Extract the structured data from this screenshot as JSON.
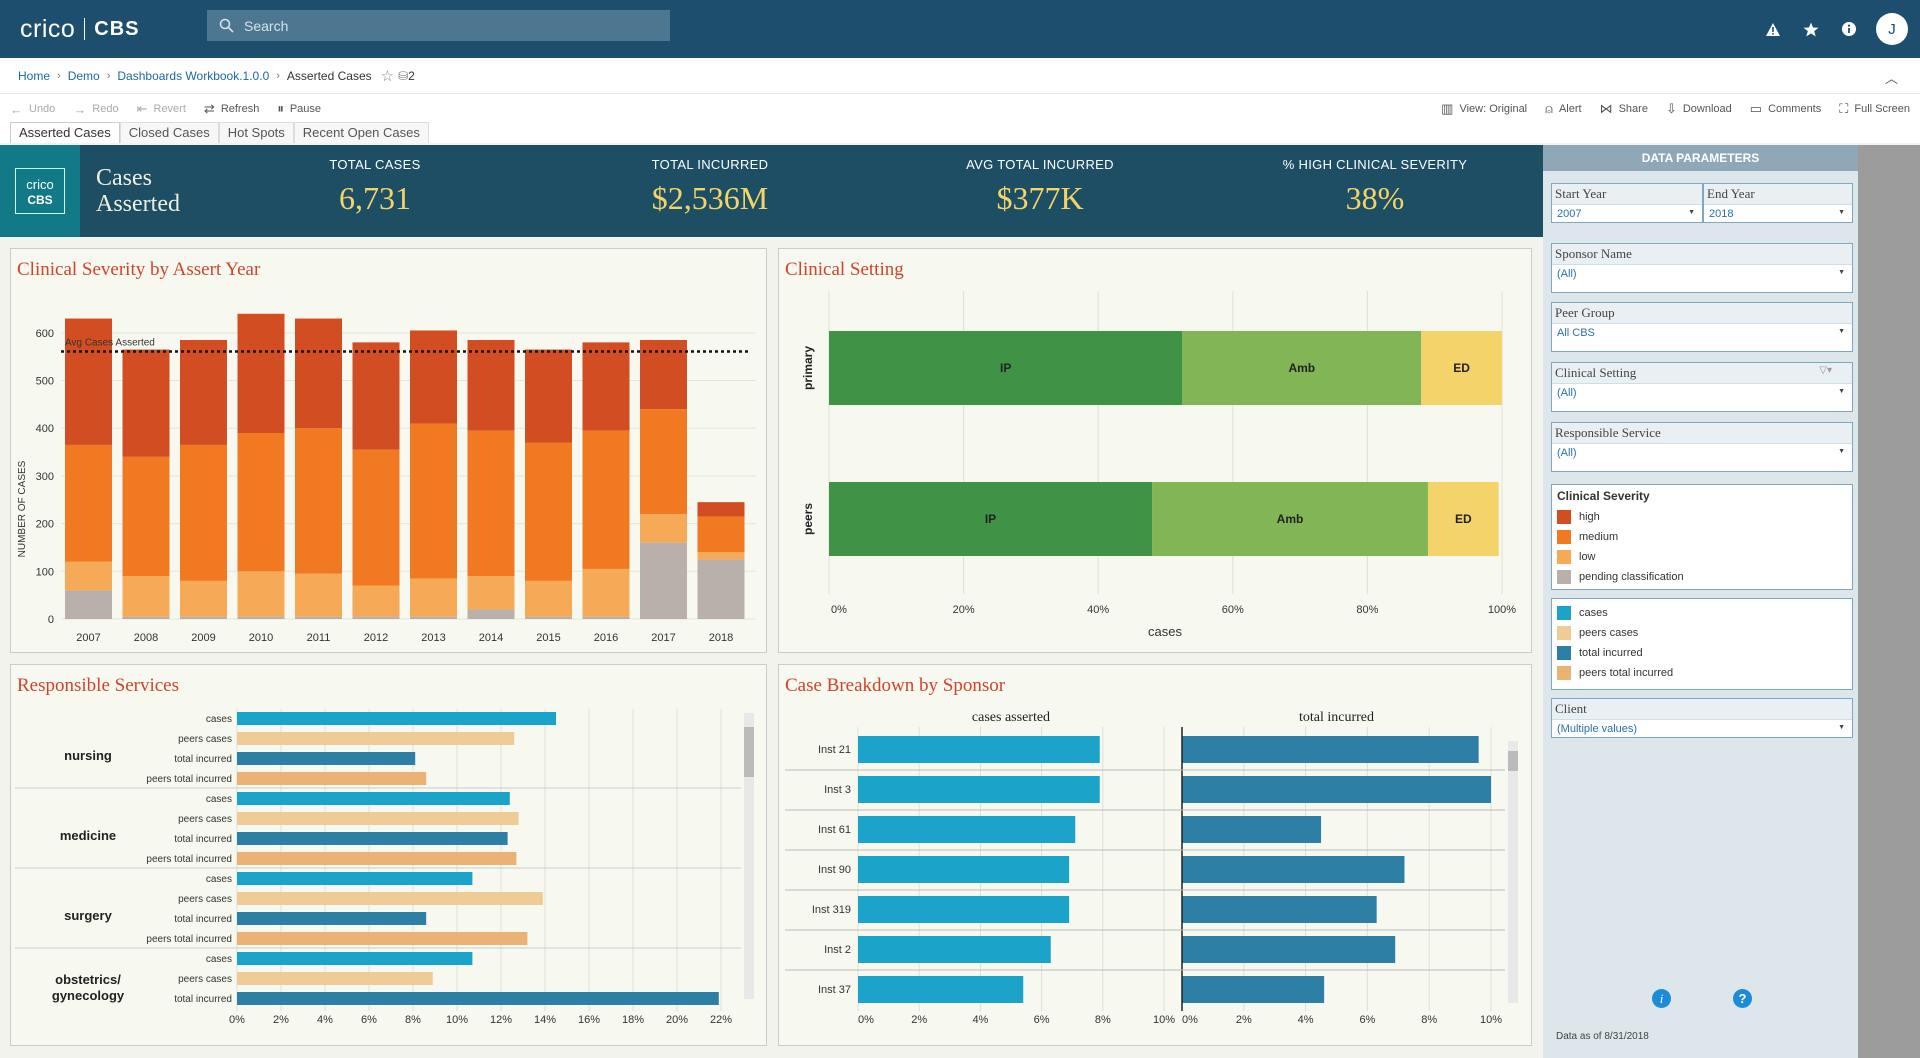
{
  "app": {
    "brand": "crico",
    "brand2": "CBS",
    "search_placeholder": "Search",
    "user_initial": "J"
  },
  "breadcrumb": [
    "Home",
    "Demo",
    "Dashboards Workbook.1.0.0",
    "Asserted Cases"
  ],
  "breadcrumb_count": "2",
  "toolbar": {
    "undo": "Undo",
    "redo": "Redo",
    "revert": "Revert",
    "refresh": "Refresh",
    "pause": "Pause",
    "view": "View: Original",
    "alert": "Alert",
    "share": "Share",
    "download": "Download",
    "comments": "Comments",
    "fullscreen": "Full Screen"
  },
  "tabs": [
    "Asserted Cases",
    "Closed Cases",
    "Hot Spots",
    "Recent Open Cases"
  ],
  "header": {
    "logo1": "crico",
    "logo2": "CBS",
    "title_line1": "Cases",
    "title_line2": "Asserted",
    "kpis": [
      {
        "label": "TOTAL CASES",
        "value": "6,731"
      },
      {
        "label": "TOTAL INCURRED",
        "value": "$2,536M"
      },
      {
        "label": "AVG TOTAL INCURRED",
        "value": "$377K"
      },
      {
        "label": "% HIGH CLINICAL SEVERITY",
        "value": "38%"
      }
    ]
  },
  "colors": {
    "high": "#d24e22",
    "medium": "#f07922",
    "low": "#f6aa58",
    "pending": "#b9b0ab",
    "cases": "#1ca3c9",
    "peers_cases": "#efcb95",
    "total_incurred": "#2e7fa6",
    "peers_total_incurred": "#eab374",
    "ip": "#3f9246",
    "amb": "#82b556",
    "ed": "#f4d36a"
  },
  "panels": {
    "severity": "Clinical Severity by Assert Year",
    "setting": "Clinical Setting",
    "services": "Responsible Services",
    "sponsor": "Case Breakdown by Sponsor"
  },
  "chart_data": [
    {
      "type": "bar",
      "stacked": true,
      "title": "Clinical Severity by Assert Year",
      "ylabel": "NUMBER OF CASES",
      "ylim": [
        0,
        650
      ],
      "yticks": [
        0,
        100,
        200,
        300,
        400,
        500,
        600
      ],
      "categories": [
        "2007",
        "2008",
        "2009",
        "2010",
        "2011",
        "2012",
        "2013",
        "2014",
        "2015",
        "2016",
        "2017",
        "2018"
      ],
      "series": [
        {
          "name": "pending classification",
          "values": [
            60,
            5,
            5,
            5,
            5,
            5,
            5,
            20,
            5,
            5,
            160,
            125
          ]
        },
        {
          "name": "low",
          "values": [
            60,
            85,
            75,
            95,
            90,
            65,
            80,
            70,
            75,
            100,
            60,
            15
          ]
        },
        {
          "name": "medium",
          "values": [
            245,
            250,
            285,
            290,
            305,
            285,
            325,
            305,
            290,
            290,
            220,
            75
          ]
        },
        {
          "name": "high",
          "values": [
            265,
            225,
            220,
            250,
            230,
            225,
            195,
            190,
            195,
            185,
            145,
            30
          ]
        }
      ],
      "reference_line": {
        "label": "Avg Cases Asserted",
        "value": 561
      }
    },
    {
      "type": "bar",
      "stacked": true,
      "orientation": "horizontal",
      "title": "Clinical Setting",
      "xlabel": "cases",
      "xlim": [
        0,
        100
      ],
      "xticks": [
        "0%",
        "20%",
        "40%",
        "60%",
        "80%",
        "100%"
      ],
      "categories": [
        "primary",
        "peers"
      ],
      "series": [
        {
          "name": "IP",
          "values": [
            52.5,
            48
          ]
        },
        {
          "name": "Amb",
          "values": [
            35.5,
            41
          ]
        },
        {
          "name": "ED",
          "values": [
            12,
            10.5
          ]
        }
      ]
    },
    {
      "type": "bar",
      "orientation": "horizontal",
      "title": "Responsible Services",
      "xlim": [
        0,
        22
      ],
      "xticks": [
        "0%",
        "2%",
        "4%",
        "6%",
        "8%",
        "10%",
        "12%",
        "14%",
        "16%",
        "18%",
        "20%",
        "22%"
      ],
      "groups": [
        {
          "name": "nursing",
          "bars": [
            {
              "label": "cases",
              "value": 14.5
            },
            {
              "label": "peers cases",
              "value": 12.6
            },
            {
              "label": "total incurred",
              "value": 8.1
            },
            {
              "label": "peers total incurred",
              "value": 8.6
            }
          ]
        },
        {
          "name": "medicine",
          "bars": [
            {
              "label": "cases",
              "value": 12.4
            },
            {
              "label": "peers cases",
              "value": 12.8
            },
            {
              "label": "total incurred",
              "value": 12.3
            },
            {
              "label": "peers total incurred",
              "value": 12.7
            }
          ]
        },
        {
          "name": "surgery",
          "bars": [
            {
              "label": "cases",
              "value": 10.7
            },
            {
              "label": "peers cases",
              "value": 13.9
            },
            {
              "label": "total incurred",
              "value": 8.6
            },
            {
              "label": "peers total incurred",
              "value": 13.2
            }
          ]
        },
        {
          "name": "obstetrics/ gynecology",
          "bars": [
            {
              "label": "cases",
              "value": 10.7
            },
            {
              "label": "peers cases",
              "value": 8.9
            },
            {
              "label": "total incurred",
              "value": 21.9
            }
          ]
        }
      ]
    },
    {
      "type": "bar",
      "orientation": "horizontal",
      "title": "Case Breakdown by Sponsor",
      "categories": [
        "Inst 21",
        "Inst 3",
        "Inst 61",
        "Inst 90",
        "Inst 319",
        "Inst 2",
        "Inst 37"
      ],
      "panels": [
        {
          "name": "cases asserted",
          "xlim": [
            0,
            10
          ],
          "xticks": [
            "0%",
            "2%",
            "4%",
            "6%",
            "8%",
            "10%"
          ],
          "values": [
            7.9,
            7.9,
            7.1,
            6.9,
            6.9,
            6.3,
            5.4
          ]
        },
        {
          "name": "total incurred",
          "xlim": [
            0,
            10
          ],
          "xticks": [
            "0%",
            "2%",
            "4%",
            "6%",
            "8%",
            "10%"
          ],
          "values": [
            9.6,
            10.0,
            4.5,
            7.2,
            6.3,
            6.9,
            4.6
          ]
        }
      ]
    }
  ],
  "params": {
    "title": "DATA PARAMETERS",
    "start_year_label": "Start Year",
    "start_year": "2007",
    "end_year_label": "End Year",
    "end_year": "2018",
    "filters": [
      {
        "label": "Sponsor Name",
        "value": "(All)"
      },
      {
        "label": "Peer Group",
        "value": "All CBS"
      },
      {
        "label": "Clinical Setting",
        "value": "(All)"
      },
      {
        "label": "Responsible Service",
        "value": "(All)"
      }
    ],
    "severity_legend_title": "Clinical Severity",
    "severity_legend": [
      "high",
      "medium",
      "low",
      "pending classification"
    ],
    "service_legend": [
      "cases",
      "peers cases",
      "total incurred",
      "peers total incurred"
    ],
    "client_label": "Client",
    "client_value": "(Multiple values)",
    "data_as_of": "Data as of 8/31/2018"
  }
}
